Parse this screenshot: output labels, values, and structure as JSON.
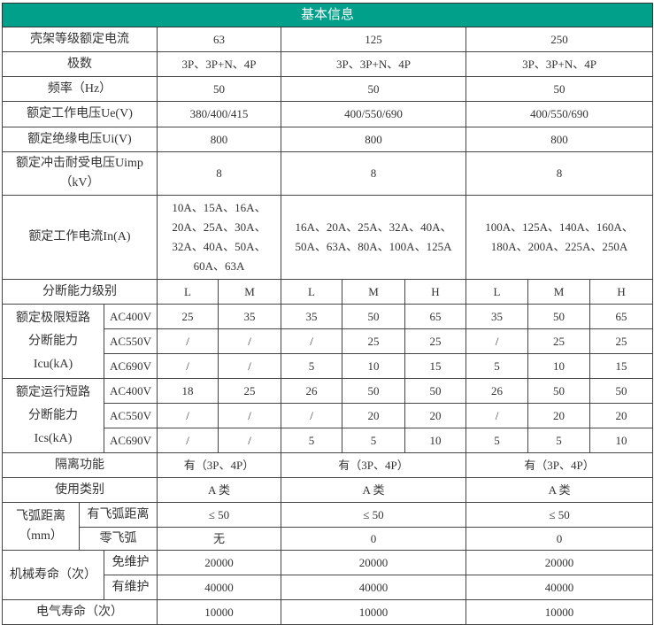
{
  "header": {
    "title": "基本信息",
    "color": "#00a08a"
  },
  "frames": [
    {
      "label": "壳架等级额定电流",
      "values": [
        "63",
        "125",
        "250"
      ]
    },
    {
      "label": "极数",
      "values": [
        "3P、3P+N、4P",
        "3P、3P+N、4P",
        "3P、3P+N、4P"
      ]
    },
    {
      "label": "频率（Hz）",
      "values": [
        "50",
        "50",
        "50"
      ]
    },
    {
      "label": "额定工作电压Ue(V)",
      "values": [
        "380/400/415",
        "400/550/690",
        "400/550/690"
      ]
    },
    {
      "label": "额定绝缘电压Ui(V)",
      "values": [
        "800",
        "800",
        "800"
      ]
    },
    {
      "label": "额定冲击耐受电压Uimp（kV）",
      "values": [
        "8",
        "8",
        "8"
      ]
    },
    {
      "label": "额定工作电流In(A)",
      "values": [
        "10A、15A、16A、20A、25A、30A、32A、40A、50A、60A、63A",
        "16A、20A、25A、32A、40A、50A、63A、80A、100A、125A",
        "100A、125A、140A、160A、180A、200A、225A、250A"
      ]
    }
  ],
  "breaking_level": {
    "label": "分断能力级别",
    "values": [
      "L",
      "M",
      "L",
      "M",
      "H",
      "L",
      "M",
      "H"
    ]
  },
  "icu": {
    "label": "额定极限短路分断能力Icu(kA)",
    "rows": [
      {
        "voltage": "AC400V",
        "values": [
          "25",
          "35",
          "35",
          "50",
          "65",
          "35",
          "50",
          "65"
        ]
      },
      {
        "voltage": "AC550V",
        "values": [
          "/",
          "/",
          "/",
          "25",
          "25",
          "/",
          "25",
          "25"
        ]
      },
      {
        "voltage": "AC690V",
        "values": [
          "/",
          "/",
          "5",
          "10",
          "15",
          "5",
          "10",
          "15"
        ]
      }
    ]
  },
  "ics": {
    "label": "额定运行短路分断能力Ics(kA)",
    "rows": [
      {
        "voltage": "AC400V",
        "values": [
          "18",
          "25",
          "26",
          "50",
          "50",
          "26",
          "50",
          "50"
        ]
      },
      {
        "voltage": "AC550V",
        "values": [
          "/",
          "/",
          "/",
          "20",
          "20",
          "/",
          "20",
          "20"
        ]
      },
      {
        "voltage": "AC690V",
        "values": [
          "/",
          "/",
          "5",
          "5",
          "10",
          "5",
          "5",
          "10"
        ]
      }
    ]
  },
  "isolation": {
    "label": "隔离功能",
    "values": [
      "有（3P、4P）",
      "有（3P、4P）",
      "有（3P、4P）"
    ]
  },
  "category": {
    "label": "使用类别",
    "values": [
      "A 类",
      "A 类",
      "A 类"
    ]
  },
  "arc": {
    "label": "飞弧距离（mm）",
    "rows": [
      {
        "label": "有飞弧距离",
        "values": [
          "≤ 50",
          "≤ 50",
          "≤ 50"
        ]
      },
      {
        "label": "零飞弧",
        "values": [
          "无",
          "0",
          "0"
        ]
      }
    ]
  },
  "mech": {
    "label": "机械寿命（次）",
    "rows": [
      {
        "label": "免维护",
        "values": [
          "20000",
          "20000",
          "20000"
        ]
      },
      {
        "label": "有维护",
        "values": [
          "40000",
          "40000",
          "40000"
        ]
      }
    ]
  },
  "elec": {
    "label": "电气寿命（次）",
    "values": [
      "10000",
      "10000",
      "10000"
    ]
  }
}
